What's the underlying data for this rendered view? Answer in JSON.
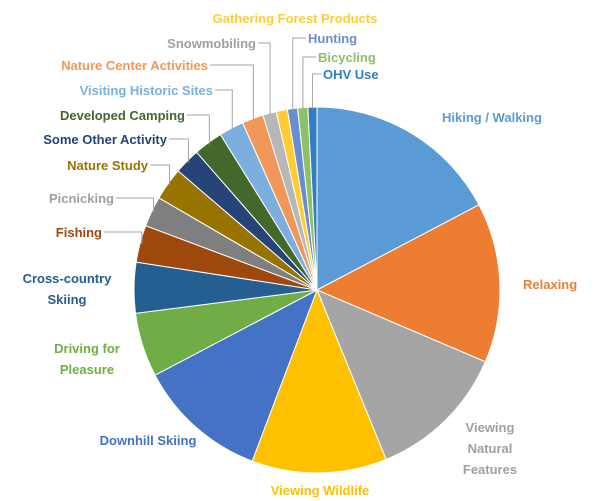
{
  "chart_data": {
    "type": "pie",
    "categories": [
      "Hiking / Walking",
      "Relaxing",
      "Viewing Natural Features",
      "Viewing Wildlife",
      "Downhill Skiing",
      "Driving for Pleasure",
      "Cross-country Skiing",
      "Fishing",
      "Picnicking",
      "Nature Study",
      "Some Other Activity",
      "Developed Camping",
      "Visiting Historic Sites",
      "Nature Center Activities",
      "Snowmobiling",
      "Gathering Forest Products",
      "Hunting",
      "Bicycling",
      "OHV Use"
    ],
    "values": [
      17.4,
      14.2,
      12.5,
      12,
      11.6,
      5.7,
      4.5,
      3.3,
      2.7,
      2.9,
      2.3,
      2.6,
      2.2,
      1.9,
      1.2,
      1.0,
      0.9,
      0.9,
      0.8
    ],
    "colors": [
      "#5b9bd5",
      "#ed7d31",
      "#a5a5a5",
      "#ffc000",
      "#4472c4",
      "#70ad47",
      "#255e91",
      "#9e480e",
      "#7f7f7f",
      "#997300",
      "#264478",
      "#43682b",
      "#7cafdd",
      "#f1975a",
      "#b7b7b7",
      "#ffcd33",
      "#698ed0",
      "#8cc168",
      "#327dc2"
    ]
  }
}
